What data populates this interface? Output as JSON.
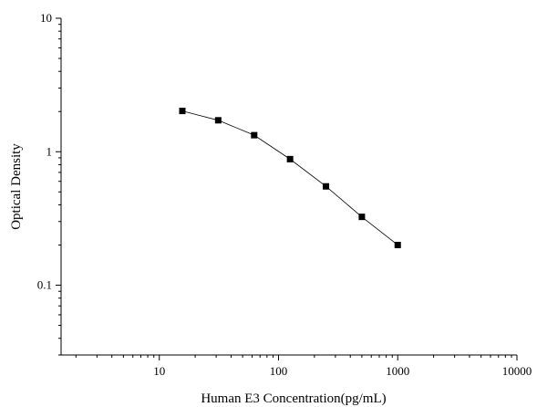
{
  "chart_data": {
    "type": "scatter",
    "xlabel": "Human E3 Concentration(pg/mL)",
    "ylabel": "Optical Density",
    "x_scale": "log",
    "y_scale": "log",
    "xlim": [
      1.5,
      10000
    ],
    "ylim": [
      0.03,
      10
    ],
    "x_ticks": [
      {
        "value": 10,
        "label": "10"
      },
      {
        "value": 100,
        "label": "100"
      },
      {
        "value": 1000,
        "label": "1000"
      },
      {
        "value": 10000,
        "label": "10000"
      }
    ],
    "y_ticks": [
      {
        "value": 0.1,
        "label": "0.1"
      },
      {
        "value": 1,
        "label": "1"
      },
      {
        "value": 10,
        "label": "10"
      }
    ],
    "grid": false,
    "legend": "none",
    "marker": "square",
    "line": "connected",
    "series": [
      {
        "x": [
          15.6,
          31.2,
          62.5,
          125,
          250,
          500,
          1000
        ],
        "y": [
          2.02,
          1.72,
          1.33,
          0.88,
          0.55,
          0.325,
          0.2
        ]
      }
    ]
  }
}
